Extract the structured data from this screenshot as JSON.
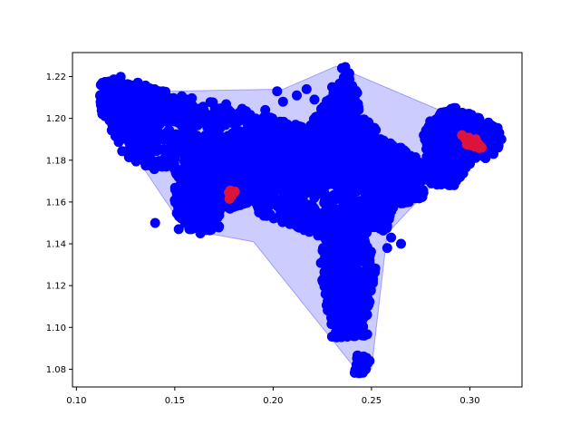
{
  "chart_data": {
    "type": "scatter",
    "title": "",
    "xlabel": "",
    "ylabel": "",
    "xlim": [
      0.098,
      0.3265
    ],
    "ylim": [
      1.0715,
      1.2315
    ],
    "xticks": [
      0.1,
      0.15,
      0.2,
      0.25,
      0.3
    ],
    "xtick_labels": [
      "0.10",
      "0.15",
      "0.20",
      "0.25",
      "0.30"
    ],
    "yticks": [
      1.08,
      1.1,
      1.12,
      1.14,
      1.16,
      1.18,
      1.2,
      1.22
    ],
    "ytick_labels": [
      "1.08",
      "1.10",
      "1.12",
      "1.14",
      "1.16",
      "1.18",
      "1.20",
      "1.22"
    ],
    "grid": false,
    "hull": {
      "color": "#0000ff",
      "fill_opacity": 0.2,
      "points": [
        [
          0.112,
          1.219
        ],
        [
          0.145,
          1.213
        ],
        [
          0.205,
          1.214
        ],
        [
          0.232,
          1.225
        ],
        [
          0.282,
          1.205
        ],
        [
          0.316,
          1.194
        ],
        [
          0.306,
          1.182
        ],
        [
          0.284,
          1.171
        ],
        [
          0.258,
          1.145
        ],
        [
          0.25,
          1.08
        ],
        [
          0.242,
          1.08
        ],
        [
          0.19,
          1.141
        ],
        [
          0.155,
          1.147
        ],
        [
          0.112,
          1.207
        ]
      ]
    },
    "series": [
      {
        "color": "#0000ff",
        "clusters": [
          {
            "poly": [
              [
                0.112,
                1.216
              ],
              [
                0.12,
                1.221
              ],
              [
                0.142,
                1.214
              ],
              [
                0.18,
                1.206
              ],
              [
                0.215,
                1.196
              ],
              [
                0.205,
                1.186
              ],
              [
                0.185,
                1.173
              ],
              [
                0.168,
                1.163
              ],
              [
                0.15,
                1.172
              ],
              [
                0.125,
                1.181
              ],
              [
                0.112,
                1.205
              ]
            ],
            "n": 750
          },
          {
            "poly": [
              [
                0.112,
                1.219
              ],
              [
                0.14,
                1.214
              ],
              [
                0.16,
                1.206
              ],
              [
                0.12,
                1.195
              ],
              [
                0.112,
                1.203
              ]
            ],
            "n": 350
          },
          {
            "poly": [
              [
                0.15,
                1.176
              ],
              [
                0.18,
                1.173
              ],
              [
                0.178,
                1.158
              ],
              [
                0.158,
                1.146
              ],
              [
                0.15,
                1.155
              ]
            ],
            "n": 220
          },
          {
            "poly": [
              [
                0.168,
                1.183
              ],
              [
                0.23,
                1.193
              ],
              [
                0.258,
                1.186
              ],
              [
                0.252,
                1.146
              ],
              [
                0.228,
                1.142
              ],
              [
                0.195,
                1.153
              ],
              [
                0.172,
                1.168
              ]
            ],
            "n": 700
          },
          {
            "poly": [
              [
                0.2,
                1.182
              ],
              [
                0.23,
                1.191
              ],
              [
                0.238,
                1.17
              ],
              [
                0.2,
                1.16
              ]
            ],
            "n": 250
          },
          {
            "poly": [
              [
                0.22,
                1.199
              ],
              [
                0.238,
                1.222
              ],
              [
                0.245,
                1.202
              ],
              [
                0.257,
                1.19
              ],
              [
                0.25,
                1.17
              ],
              [
                0.224,
                1.174
              ]
            ],
            "n": 380
          },
          {
            "poly": [
              [
                0.232,
                1.212
              ],
              [
                0.237,
                1.226
              ],
              [
                0.243,
                1.212
              ]
            ],
            "n": 45
          },
          {
            "poly": [
              [
                0.25,
                1.192
              ],
              [
                0.268,
                1.185
              ],
              [
                0.28,
                1.176
              ],
              [
                0.276,
                1.162
              ],
              [
                0.262,
                1.158
              ],
              [
                0.252,
                1.17
              ]
            ],
            "n": 300
          },
          {
            "poly": [
              [
                0.276,
                1.196
              ],
              [
                0.29,
                1.206
              ],
              [
                0.303,
                1.201
              ],
              [
                0.316,
                1.195
              ],
              [
                0.315,
                1.186
              ],
              [
                0.302,
                1.18
              ],
              [
                0.292,
                1.168
              ],
              [
                0.28,
                1.168
              ]
            ],
            "n": 420
          },
          {
            "poly": [
              [
                0.226,
                1.152
              ],
              [
                0.246,
                1.152
              ],
              [
                0.252,
                1.128
              ],
              [
                0.247,
                1.1
              ],
              [
                0.236,
                1.097
              ],
              [
                0.228,
                1.106
              ],
              [
                0.224,
                1.128
              ]
            ],
            "n": 550
          },
          {
            "poly": [
              [
                0.228,
                1.112
              ],
              [
                0.245,
                1.112
              ],
              [
                0.248,
                1.096
              ],
              [
                0.23,
                1.095
              ]
            ],
            "n": 160
          },
          {
            "poly": [
              [
                0.241,
                1.088
              ],
              [
                0.249,
                1.086
              ],
              [
                0.247,
                1.078
              ],
              [
                0.241,
                1.078
              ]
            ],
            "n": 22
          },
          {
            "poly": [
              [
                0.185,
                1.202
              ],
              [
                0.215,
                1.196
              ],
              [
                0.212,
                1.18
              ],
              [
                0.19,
                1.182
              ]
            ],
            "n": 160
          },
          {
            "poly": [
              [
                0.16,
                1.167
              ],
              [
                0.176,
                1.166
              ],
              [
                0.173,
                1.146
              ],
              [
                0.159,
                1.147
              ]
            ],
            "n": 90
          },
          {
            "poly": [
              [
                0.172,
                1.175
              ],
              [
                0.19,
                1.182
              ],
              [
                0.196,
                1.162
              ],
              [
                0.178,
                1.156
              ]
            ],
            "n": 150
          },
          {
            "poly": [
              [
                0.208,
                1.19
              ],
              [
                0.23,
                1.204
              ],
              [
                0.25,
                1.198
              ],
              [
                0.24,
                1.18
              ]
            ],
            "n": 200
          },
          {
            "poly": [
              [
                0.25,
                1.178
              ],
              [
                0.265,
                1.172
              ],
              [
                0.258,
                1.146
              ],
              [
                0.246,
                1.148
              ]
            ],
            "n": 140
          },
          {
            "poly": [
              [
                0.276,
                1.19
              ],
              [
                0.3,
                1.192
              ],
              [
                0.3,
                1.178
              ],
              [
                0.284,
                1.17
              ]
            ],
            "n": 160
          }
        ],
        "extra_points": [
          [
            0.212,
            1.211
          ],
          [
            0.217,
            1.214
          ],
          [
            0.202,
            1.213
          ],
          [
            0.196,
            1.204
          ],
          [
            0.221,
            1.209
          ],
          [
            0.188,
            1.196
          ],
          [
            0.205,
            1.208
          ],
          [
            0.14,
            1.15
          ],
          [
            0.152,
            1.147
          ],
          [
            0.163,
            1.145
          ],
          [
            0.269,
            1.16
          ],
          [
            0.271,
            1.165
          ],
          [
            0.292,
            1.168
          ],
          [
            0.308,
            1.181
          ],
          [
            0.312,
            1.183
          ],
          [
            0.26,
            1.143
          ],
          [
            0.265,
            1.14
          ],
          [
            0.258,
            1.138
          ],
          [
            0.249,
            1.084
          ],
          [
            0.245,
            1.08
          ],
          [
            0.23,
            1.215
          ],
          [
            0.235,
            1.224
          ],
          [
            0.316,
            1.19
          ],
          [
            0.315,
            1.193
          ],
          [
            0.287,
            1.203
          ]
        ]
      },
      {
        "color": "#dc143c",
        "points": [
          [
            0.1775,
            1.1645
          ],
          [
            0.1785,
            1.1625
          ],
          [
            0.1792,
            1.164
          ],
          [
            0.1805,
            1.165
          ],
          [
            0.1778,
            1.1615
          ],
          [
            0.179,
            1.1632
          ],
          [
            0.18,
            1.1645
          ],
          [
            0.1782,
            1.1655
          ],
          [
            0.296,
            1.192
          ],
          [
            0.2975,
            1.1905
          ],
          [
            0.299,
            1.1895
          ],
          [
            0.3,
            1.189
          ],
          [
            0.301,
            1.188
          ],
          [
            0.302,
            1.1885
          ],
          [
            0.303,
            1.19
          ],
          [
            0.304,
            1.188
          ],
          [
            0.305,
            1.187
          ],
          [
            0.306,
            1.186
          ],
          [
            0.2985,
            1.1875
          ],
          [
            0.3005,
            1.1872
          ],
          [
            0.3015,
            1.1895
          ],
          [
            0.3025,
            1.1865
          ],
          [
            0.2995,
            1.1908
          ],
          [
            0.3035,
            1.1872
          ],
          [
            0.3048,
            1.1858
          ]
        ]
      }
    ]
  }
}
